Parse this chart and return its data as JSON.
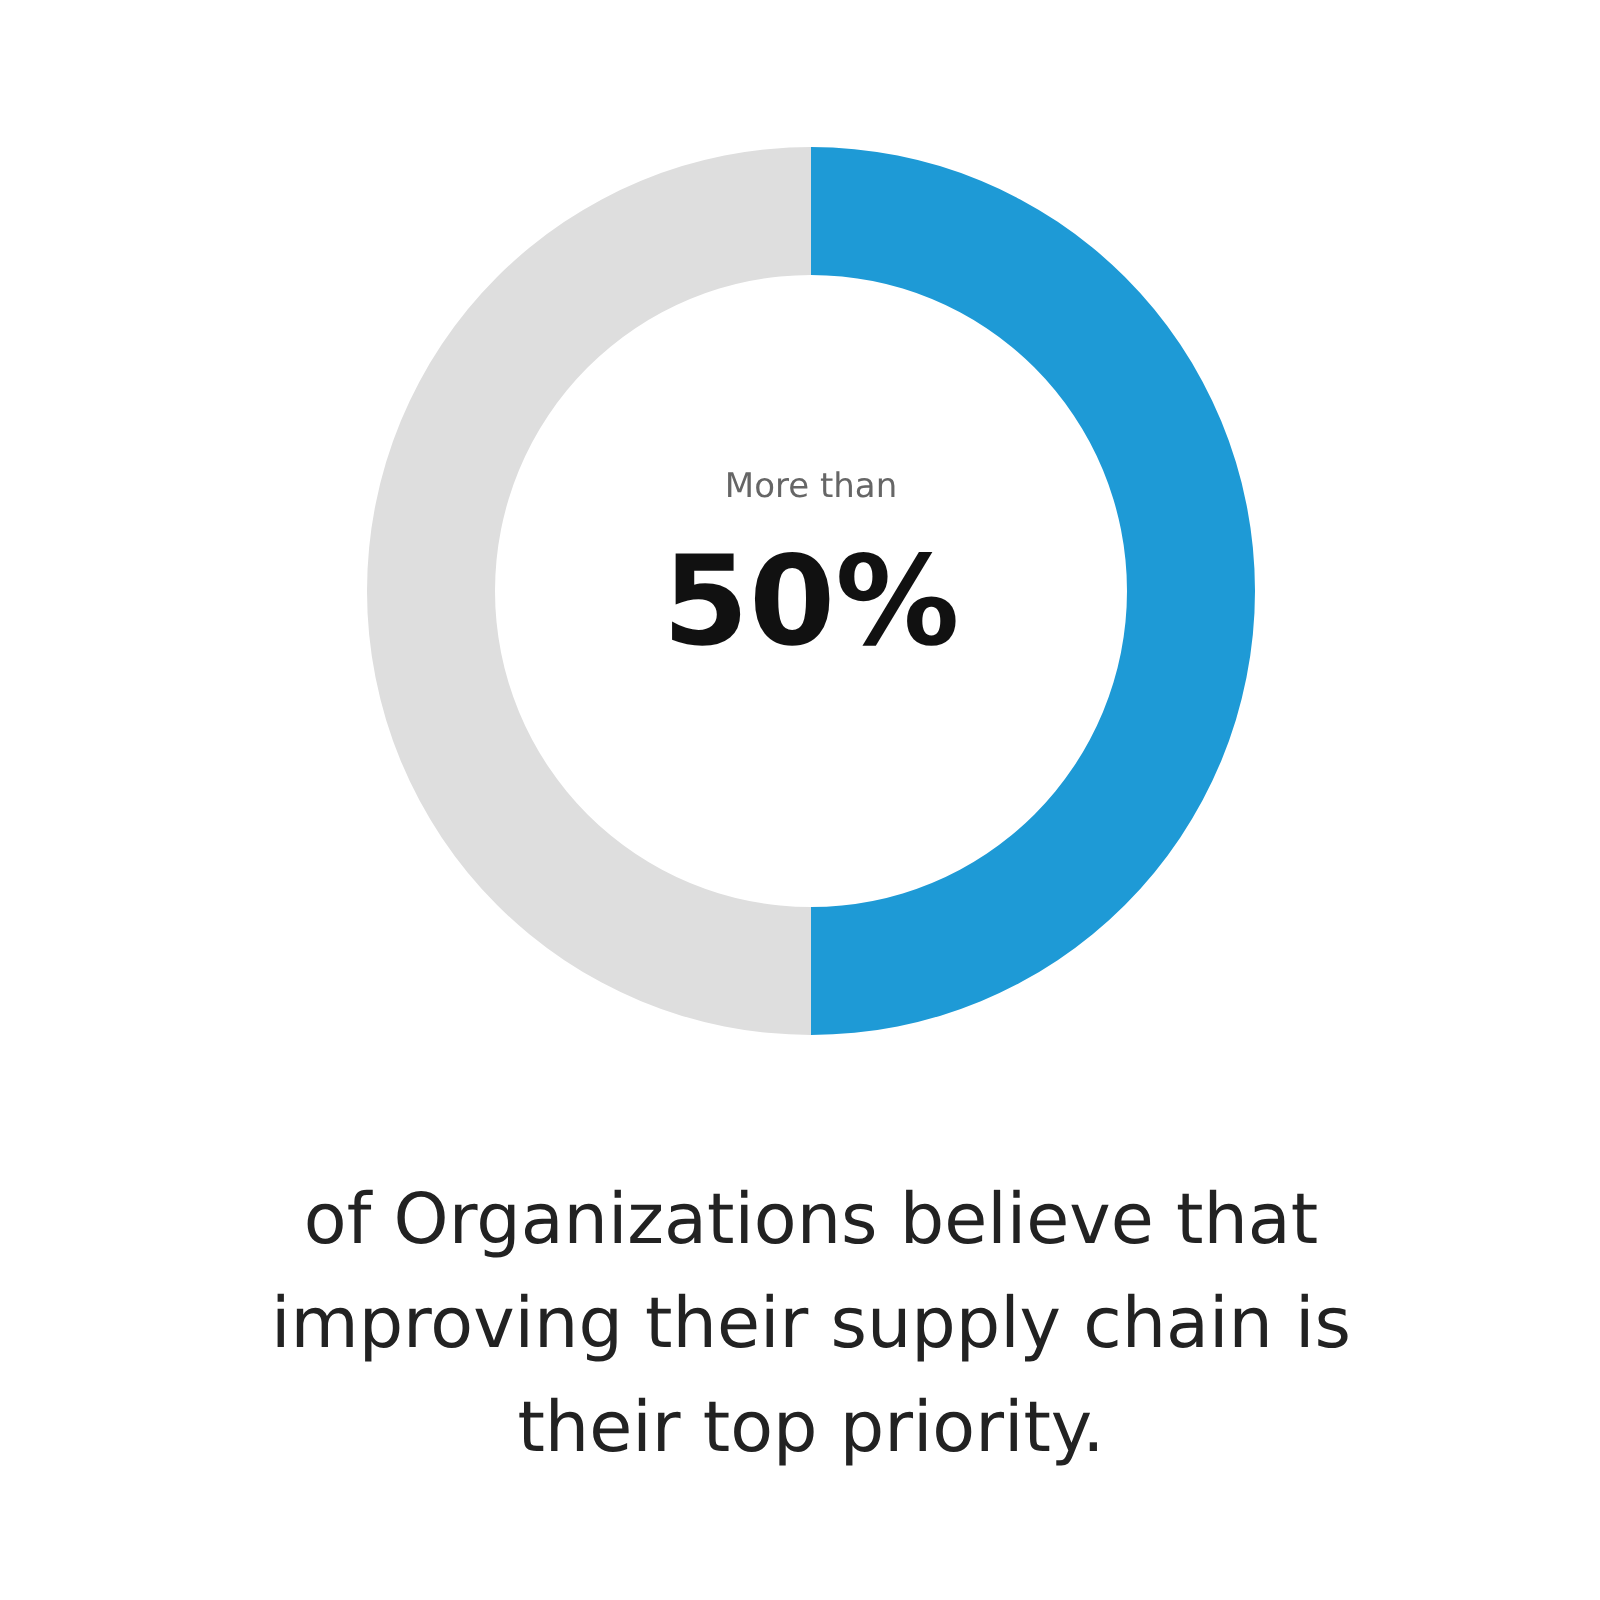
{
  "chart_data": {
    "type": "donut",
    "categories": [
      null,
      null
    ],
    "values": [
      50,
      50
    ],
    "colors": [
      "#1e9ad6",
      "#dedede"
    ],
    "annotations": [
      "More than",
      "50%",
      "of Organizations believe that improving their supply chain is their top priority."
    ]
  }
}
